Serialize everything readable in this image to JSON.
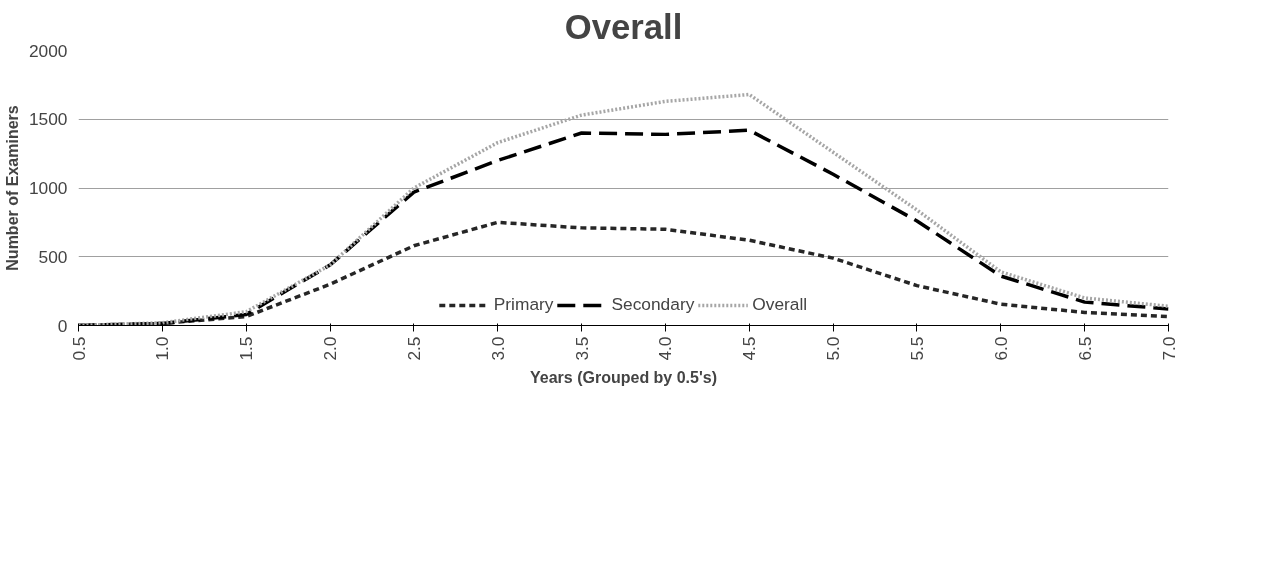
{
  "chart_data": {
    "type": "line",
    "title": "Overall",
    "xlabel": "Years (Grouped by 0.5's)",
    "ylabel": "Number of Examiners",
    "categories": [
      "0.5",
      "1.0",
      "1.5",
      "2.0",
      "2.5",
      "3.0",
      "3.5",
      "4.0",
      "4.5",
      "5.0",
      "5.5",
      "6.0",
      "6.5",
      "7.0"
    ],
    "series": [
      {
        "name": "Primary",
        "color": "#262626",
        "line_style": "dashed",
        "values": [
          0,
          15,
          65,
          300,
          580,
          750,
          710,
          700,
          620,
          490,
          290,
          155,
          95,
          65
        ]
      },
      {
        "name": "Secondary",
        "color": "#000000",
        "line_style": "dashed",
        "values": [
          0,
          15,
          80,
          440,
          970,
          1200,
          1400,
          1390,
          1420,
          1100,
          760,
          360,
          170,
          120
        ]
      },
      {
        "name": "Overall",
        "color": "#a6a6a6",
        "line_style": "dotted",
        "values": [
          0,
          20,
          100,
          440,
          1000,
          1330,
          1530,
          1630,
          1680,
          1260,
          840,
          390,
          200,
          140
        ]
      }
    ],
    "ylim": [
      0,
      2000
    ],
    "yticks": [
      0,
      500,
      1000,
      1500,
      2000
    ],
    "grid": "y",
    "legend": "bottom",
    "marker": "none"
  }
}
